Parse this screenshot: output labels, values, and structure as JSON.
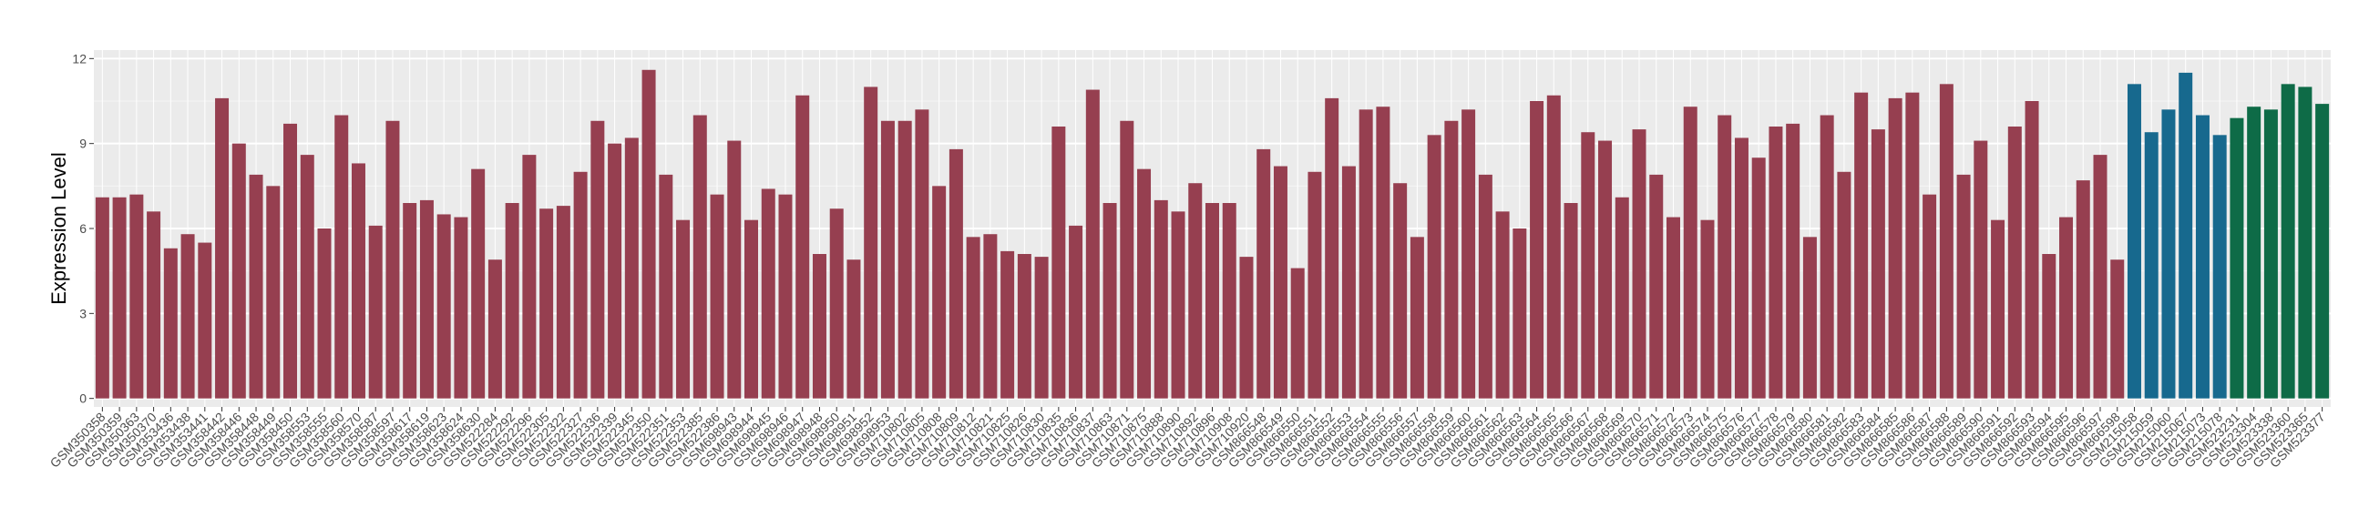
{
  "chart_data": {
    "type": "bar",
    "y_label": "Expression Level",
    "ylim": [
      -0.3,
      12.3
    ],
    "yticks": [
      0,
      3,
      6,
      9,
      12
    ],
    "grid": true,
    "series": [
      {
        "color": "#963f50",
        "categories": [
          "GSM350358",
          "GSM350359",
          "GSM350363",
          "GSM350370",
          "GSM353436",
          "GSM353438",
          "GSM353441",
          "GSM358442",
          "GSM358446",
          "GSM358448",
          "GSM358449",
          "GSM358450",
          "GSM358553",
          "GSM358555",
          "GSM358560",
          "GSM358570",
          "GSM358587",
          "GSM358597",
          "GSM358617",
          "GSM358619",
          "GSM358623",
          "GSM358624",
          "GSM358630",
          "GSM522284",
          "GSM522292",
          "GSM522296",
          "GSM522305",
          "GSM522322",
          "GSM522327",
          "GSM522336",
          "GSM522339",
          "GSM522345",
          "GSM522350",
          "GSM522351",
          "GSM522353",
          "GSM522385",
          "GSM522386",
          "GSM698943",
          "GSM698944",
          "GSM698945",
          "GSM698946",
          "GSM698947",
          "GSM698948",
          "GSM698950",
          "GSM698951",
          "GSM698952",
          "GSM698953",
          "GSM710802",
          "GSM710805",
          "GSM710808",
          "GSM710809",
          "GSM710812",
          "GSM710821",
          "GSM710825",
          "GSM710826",
          "GSM710830",
          "GSM710835",
          "GSM710836",
          "GSM710837",
          "GSM710863",
          "GSM710871",
          "GSM710875",
          "GSM710888",
          "GSM710890",
          "GSM710892",
          "GSM710896",
          "GSM710908",
          "GSM710920",
          "GSM866548",
          "GSM866549",
          "GSM866550",
          "GSM866551",
          "GSM866552",
          "GSM866553",
          "GSM866554",
          "GSM866555",
          "GSM866556",
          "GSM866557",
          "GSM866558",
          "GSM866559",
          "GSM866560",
          "GSM866561",
          "GSM866562",
          "GSM866563",
          "GSM866564",
          "GSM866565",
          "GSM866566",
          "GSM866567",
          "GSM866568",
          "GSM866569",
          "GSM866570",
          "GSM866571",
          "GSM866572",
          "GSM866573",
          "GSM866574",
          "GSM866575",
          "GSM866576",
          "GSM866577",
          "GSM866578",
          "GSM866579",
          "GSM866580",
          "GSM866581",
          "GSM866582",
          "GSM866583",
          "GSM866584",
          "GSM866585",
          "GSM866586",
          "GSM866587",
          "GSM866588",
          "GSM866589",
          "GSM866590",
          "GSM866591",
          "GSM866592",
          "GSM866593",
          "GSM866594",
          "GSM866595",
          "GSM866596",
          "GSM866597",
          "GSM866598"
        ],
        "values": [
          7.1,
          7.1,
          7.2,
          6.6,
          5.3,
          5.8,
          5.5,
          10.6,
          9.0,
          7.9,
          7.5,
          9.7,
          8.6,
          6.0,
          10.0,
          8.3,
          6.1,
          9.8,
          6.9,
          7.0,
          6.5,
          6.4,
          8.1,
          4.9,
          6.9,
          8.6,
          6.7,
          6.8,
          8.0,
          9.8,
          9.0,
          9.2,
          11.6,
          7.9,
          6.3,
          10.0,
          7.2,
          9.1,
          6.3,
          7.4,
          7.2,
          10.7,
          5.1,
          6.7,
          4.9,
          11.0,
          9.8,
          9.8,
          10.2,
          7.5,
          8.8,
          5.7,
          5.8,
          5.2,
          5.1,
          5.0,
          9.6,
          6.1,
          10.9,
          6.9,
          9.8,
          8.1,
          7.0,
          6.6,
          7.6,
          6.9,
          6.9,
          5.0,
          8.8,
          8.2,
          4.6,
          8.0,
          10.6,
          8.2,
          10.2,
          10.3,
          7.6,
          5.7,
          9.3,
          9.8,
          10.2,
          7.9,
          6.6,
          6.0,
          10.5,
          10.7,
          6.9,
          9.4,
          9.1,
          7.1,
          9.5,
          7.9,
          6.4,
          10.3,
          6.3,
          10.0,
          9.2,
          8.5,
          9.6,
          9.7,
          5.7,
          10.0,
          8.0,
          10.8,
          9.5,
          10.6,
          10.8,
          7.2,
          11.1,
          7.9,
          9.1,
          6.3,
          9.6,
          10.5,
          5.1,
          6.4,
          7.7,
          8.6,
          4.9
        ]
      },
      {
        "color": "#17698e",
        "categories": [
          "GSM215058",
          "GSM215059",
          "GSM215060",
          "GSM215067",
          "GSM215073",
          "GSM215078"
        ],
        "values": [
          11.1,
          9.4,
          10.2,
          11.5,
          10.0,
          9.3
        ]
      },
      {
        "color": "#0e6b47",
        "categories": [
          "GSM523231",
          "GSM523304",
          "GSM523338",
          "GSM523360",
          "GSM523365",
          "GSM523377"
        ],
        "values": [
          9.9,
          10.3,
          10.2,
          11.1,
          11.0,
          10.4
        ]
      }
    ]
  }
}
